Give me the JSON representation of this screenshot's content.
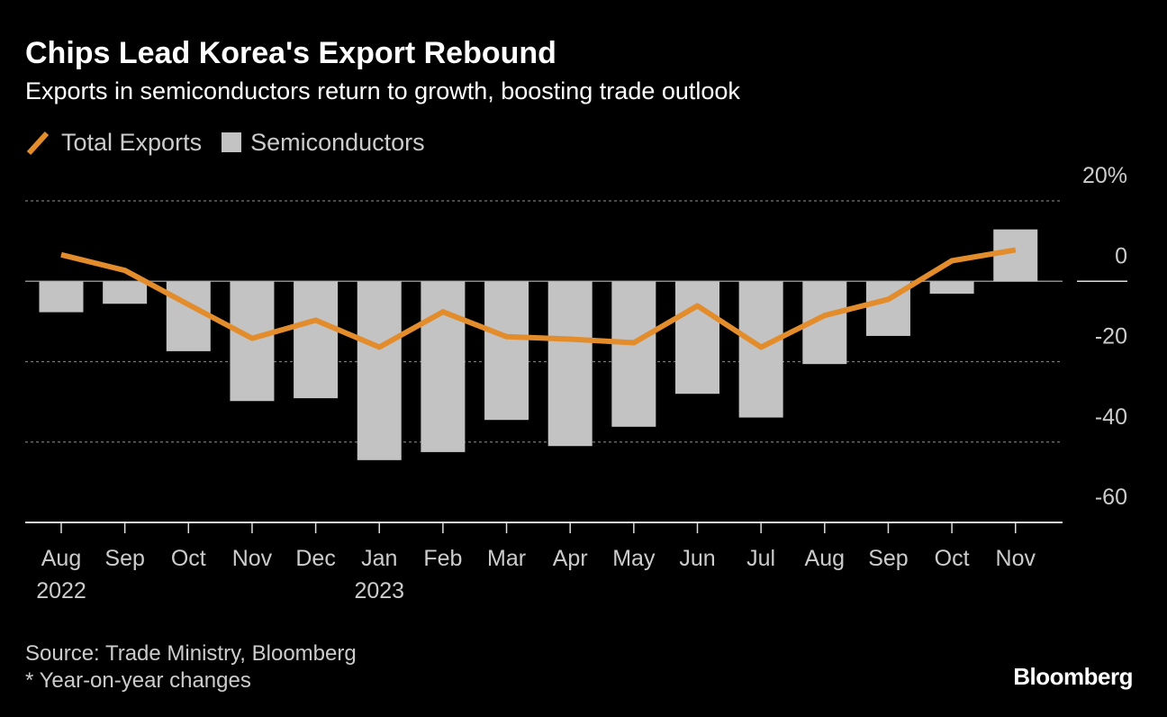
{
  "header": {
    "title": "Chips Lead Korea's Export Rebound",
    "subtitle": "Exports in semiconductors return to growth, boosting trade outlook"
  },
  "legend": {
    "line_label": "Total Exports",
    "bar_label": "Semiconductors"
  },
  "footer": {
    "source": "Source: Trade Ministry, Bloomberg",
    "note": "* Year-on-year changes",
    "brand": "Bloomberg"
  },
  "colors": {
    "background": "#000000",
    "line": "#e38c2c",
    "bars": "#c3c3c3",
    "grid": "#777777",
    "text": "#cccccc"
  },
  "chart_data": {
    "type": "bar",
    "categories": [
      "Aug",
      "Sep",
      "Oct",
      "Nov",
      "Dec",
      "Jan",
      "Feb",
      "Mar",
      "Apr",
      "May",
      "Jun",
      "Jul",
      "Aug",
      "Sep",
      "Oct",
      "Nov"
    ],
    "year_labels": [
      {
        "category_index": 0,
        "label": "2022"
      },
      {
        "category_index": 5,
        "label": "2023"
      }
    ],
    "series": [
      {
        "name": "Semiconductors",
        "type": "bar",
        "values": [
          -7.7,
          -5.6,
          -17.4,
          -29.8,
          -29.1,
          -44.5,
          -42.5,
          -34.5,
          -41.0,
          -36.2,
          -28.0,
          -33.9,
          -20.6,
          -13.6,
          -3.1,
          12.9
        ]
      },
      {
        "name": "Total Exports",
        "type": "line",
        "values": [
          6.6,
          2.7,
          -5.8,
          -14.2,
          -9.7,
          -16.4,
          -7.6,
          -13.8,
          -14.4,
          -15.3,
          -6.1,
          -16.4,
          -8.5,
          -4.5,
          5.1,
          7.8
        ]
      }
    ],
    "y_ticks": [
      20,
      0,
      -20,
      -40,
      -60
    ],
    "y_tick_labels": [
      "20%",
      "0",
      "-20",
      "-40",
      "-60"
    ],
    "ylim": [
      -60,
      20
    ],
    "grid": true,
    "legend_position": "top-left"
  }
}
